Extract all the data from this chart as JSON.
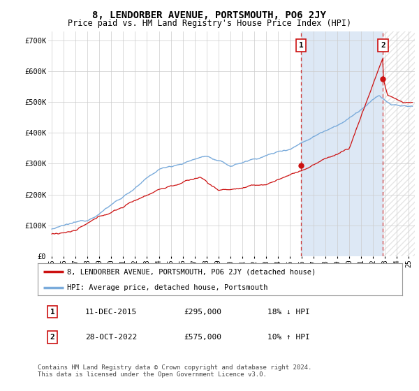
{
  "title": "8, LENDORBER AVENUE, PORTSMOUTH, PO6 2JY",
  "subtitle": "Price paid vs. HM Land Registry's House Price Index (HPI)",
  "ylabel_ticks": [
    "£0",
    "£100K",
    "£200K",
    "£300K",
    "£400K",
    "£500K",
    "£600K",
    "£700K"
  ],
  "ytick_values": [
    0,
    100000,
    200000,
    300000,
    400000,
    500000,
    600000,
    700000
  ],
  "ylim": [
    0,
    730000
  ],
  "xlim_start": 1994.7,
  "xlim_end": 2025.5,
  "hpi_color": "#7aabdb",
  "price_color": "#cc1111",
  "marker1_date": 2015.95,
  "marker1_price": 295000,
  "marker1_label": "1",
  "marker2_date": 2022.83,
  "marker2_price": 575000,
  "marker2_label": "2",
  "legend_line1": "8, LENDORBER AVENUE, PORTSMOUTH, PO6 2JY (detached house)",
  "legend_line2": "HPI: Average price, detached house, Portsmouth",
  "table_row1_num": "1",
  "table_row1_date": "11-DEC-2015",
  "table_row1_price": "£295,000",
  "table_row1_hpi": "18% ↓ HPI",
  "table_row2_num": "2",
  "table_row2_date": "28-OCT-2022",
  "table_row2_price": "£575,000",
  "table_row2_hpi": "10% ↑ HPI",
  "footer": "Contains HM Land Registry data © Crown copyright and database right 2024.\nThis data is licensed under the Open Government Licence v3.0.",
  "xtick_years": [
    1995,
    1996,
    1997,
    1998,
    1999,
    2000,
    2001,
    2002,
    2003,
    2004,
    2005,
    2006,
    2007,
    2008,
    2009,
    2010,
    2011,
    2012,
    2013,
    2014,
    2015,
    2016,
    2017,
    2018,
    2019,
    2020,
    2021,
    2022,
    2023,
    2024,
    2025
  ],
  "background_color": "#ffffff",
  "grid_color": "#cccccc",
  "shade_color": "#dde8f5",
  "hatch_color": "#cccccc"
}
